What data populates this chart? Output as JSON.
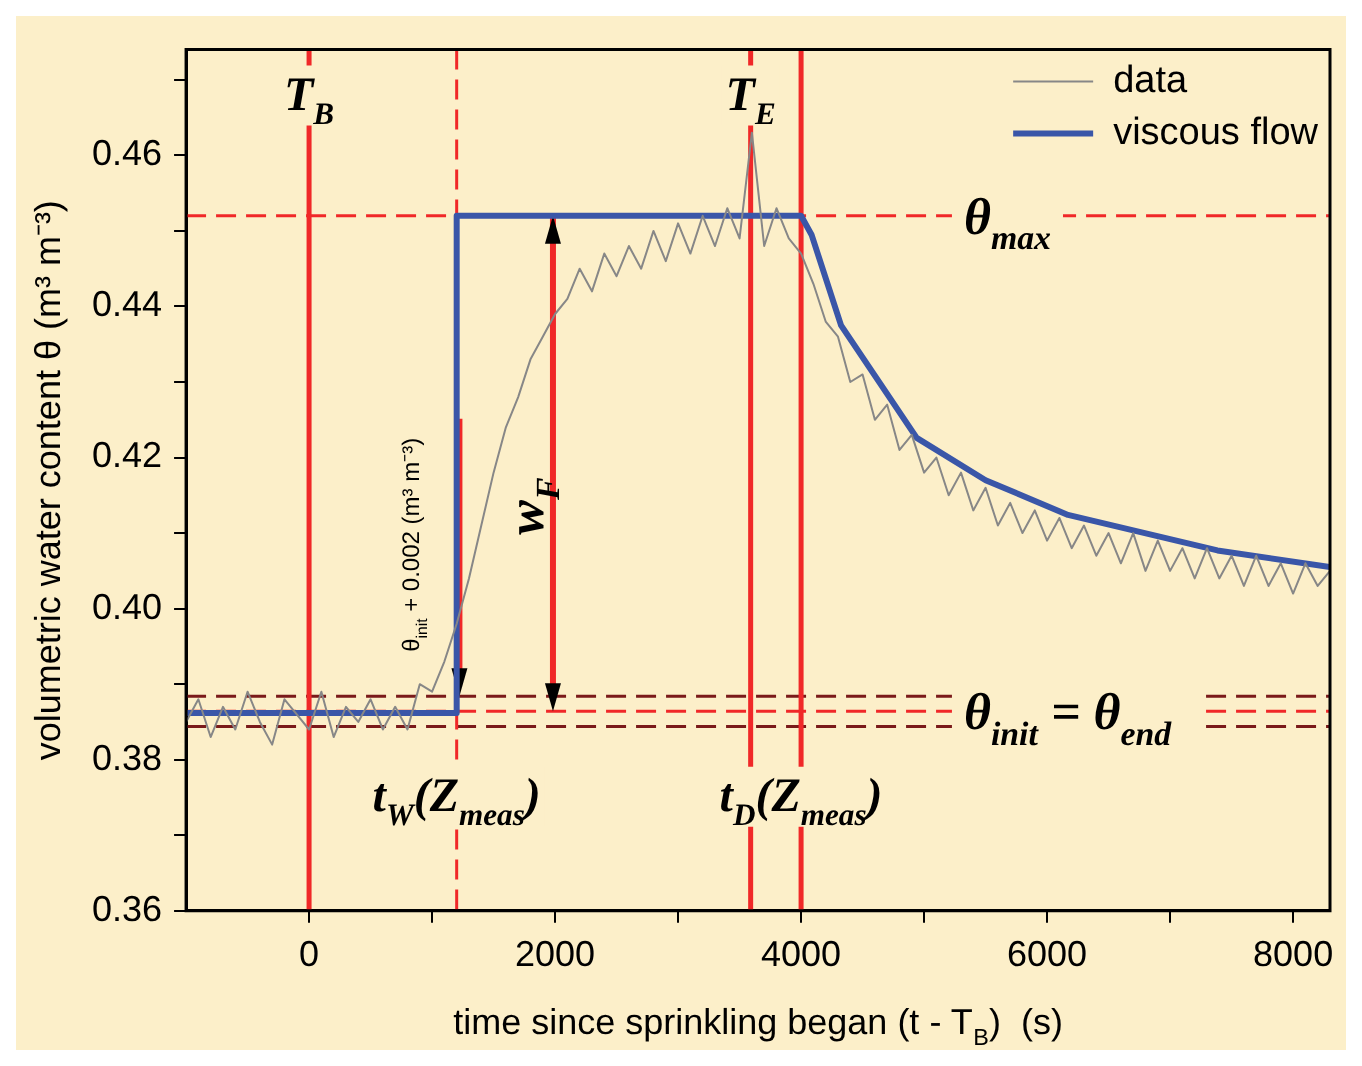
{
  "chart_data": {
    "type": "line",
    "xlabel": "time since sprinkling began (t - T$_{B}$)  (s)",
    "ylabel": "volumetric water content θ (m³ m⁻³)",
    "xlim": [
      -1000,
      8300
    ],
    "ylim": [
      0.36,
      0.474
    ],
    "xticks": [
      {
        "value": 0,
        "label": "0"
      },
      {
        "value": 1000,
        "label": null
      },
      {
        "value": 2000,
        "label": "2000"
      },
      {
        "value": 3000,
        "label": null
      },
      {
        "value": 4000,
        "label": "4000"
      },
      {
        "value": 5000,
        "label": null
      },
      {
        "value": 6000,
        "label": "6000"
      },
      {
        "value": 7000,
        "label": null
      },
      {
        "value": 8000,
        "label": "8000"
      }
    ],
    "yticks": [
      {
        "value": 0.36,
        "label": "0.36"
      },
      {
        "value": 0.37,
        "label": null
      },
      {
        "value": 0.38,
        "label": "0.38"
      },
      {
        "value": 0.39,
        "label": null
      },
      {
        "value": 0.4,
        "label": "0.40"
      },
      {
        "value": 0.41,
        "label": null
      },
      {
        "value": 0.42,
        "label": "0.42"
      },
      {
        "value": 0.43,
        "label": null
      },
      {
        "value": 0.44,
        "label": "0.44"
      },
      {
        "value": 0.45,
        "label": null
      },
      {
        "value": 0.46,
        "label": "0.46"
      },
      {
        "value": 0.47,
        "label": null
      }
    ],
    "grid": false,
    "legend": "top right",
    "marker": "none",
    "line_style": "solid",
    "series": [
      {
        "name": "data",
        "color": "#878787",
        "x": [
          -1000,
          -900,
          -800,
          -700,
          -600,
          -500,
          -400,
          -300,
          -200,
          -100,
          0,
          100,
          200,
          300,
          400,
          500,
          600,
          700,
          800,
          900,
          1000,
          1100,
          1200,
          1300,
          1400,
          1500,
          1600,
          1700,
          1800,
          1900,
          2000,
          2100,
          2200,
          2300,
          2400,
          2500,
          2600,
          2700,
          2800,
          2900,
          3000,
          3100,
          3200,
          3300,
          3400,
          3500,
          3600,
          3700,
          3800,
          3900,
          4000,
          4100,
          4200,
          4300,
          4400,
          4500,
          4600,
          4700,
          4800,
          4900,
          5000,
          5100,
          5200,
          5300,
          5400,
          5500,
          5600,
          5700,
          5800,
          5900,
          6000,
          6100,
          6200,
          6300,
          6400,
          6500,
          6600,
          6700,
          6800,
          6900,
          7000,
          7100,
          7200,
          7300,
          7400,
          7500,
          7600,
          7700,
          7800,
          7900,
          8000,
          8100,
          8200,
          8300
        ],
        "values": [
          0.385,
          0.388,
          0.383,
          0.387,
          0.384,
          0.389,
          0.385,
          0.382,
          0.388,
          0.386,
          0.384,
          0.389,
          0.383,
          0.387,
          0.385,
          0.388,
          0.384,
          0.387,
          0.384,
          0.39,
          0.389,
          0.393,
          0.398,
          0.404,
          0.411,
          0.418,
          0.424,
          0.428,
          0.433,
          0.436,
          0.439,
          0.441,
          0.445,
          0.442,
          0.447,
          0.444,
          0.448,
          0.445,
          0.45,
          0.446,
          0.451,
          0.447,
          0.452,
          0.448,
          0.453,
          0.449,
          0.463,
          0.448,
          0.453,
          0.449,
          0.447,
          0.443,
          0.438,
          0.436,
          0.43,
          0.431,
          0.425,
          0.427,
          0.421,
          0.423,
          0.418,
          0.42,
          0.415,
          0.418,
          0.413,
          0.416,
          0.411,
          0.414,
          0.41,
          0.413,
          0.409,
          0.412,
          0.408,
          0.411,
          0.407,
          0.41,
          0.406,
          0.41,
          0.405,
          0.409,
          0.405,
          0.408,
          0.404,
          0.408,
          0.404,
          0.407,
          0.403,
          0.407,
          0.403,
          0.406,
          0.402,
          0.406,
          0.403,
          0.405
        ]
      },
      {
        "name": "viscous flow",
        "color": "#3a56a8",
        "x": [
          -1000,
          1200,
          1200,
          4000,
          4085,
          4325,
          4940,
          5500,
          6170,
          7385,
          8300
        ],
        "values": [
          0.3862,
          0.3862,
          0.452,
          0.452,
          0.4495,
          0.4375,
          0.4226,
          0.417,
          0.4124,
          0.4077,
          0.4055
        ]
      }
    ],
    "ref_lines": [
      {
        "axis": "y",
        "value": 0.3864,
        "label": "θ$_{init}$ = θ$_{end}$",
        "color": "#f02828",
        "line_style": "dashed"
      },
      {
        "axis": "y",
        "value": 0.452,
        "label": "θ$_{max}$",
        "color": "#f02828",
        "line_style": "dashed"
      },
      {
        "axis": "y",
        "value": 0.3884,
        "color": "#7a1a1a",
        "line_style": "dashed"
      },
      {
        "axis": "y",
        "value": 0.3844,
        "color": "#7a1a1a",
        "line_style": "dashed"
      },
      {
        "axis": "x",
        "value": 0,
        "label": "T$_{B}$",
        "color": "#f02828",
        "line_style": "solid"
      },
      {
        "axis": "x",
        "value": 1200,
        "label": "t$_{W}$(Z$_{meas}$)",
        "color": "#f02828",
        "line_style": "dashed"
      },
      {
        "axis": "x",
        "value": 3590,
        "label": "T$_{E}$",
        "color": "#f02828",
        "line_style": "solid"
      },
      {
        "axis": "x",
        "value": 4000,
        "label": "t$_{D}$(Z$_{meas}$)",
        "color": "#f02828",
        "line_style": "solid"
      }
    ],
    "annotations": [
      "w$_{F}$",
      "θ$_{init}$ + 0.002 (m³ m⁻³)"
    ]
  }
}
